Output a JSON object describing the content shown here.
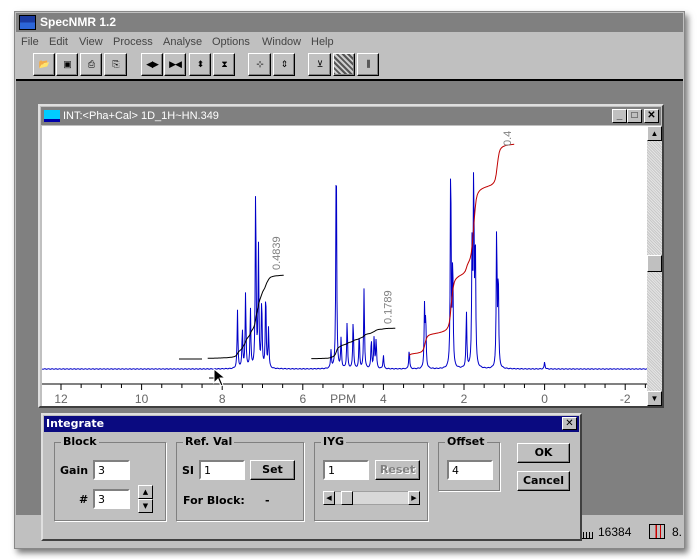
{
  "app": {
    "title": "SpecNMR 1.2"
  },
  "menu": [
    "File",
    "Edit",
    "View",
    "Process",
    "Analyse",
    "Options",
    "Window",
    "Help"
  ],
  "toolbar": [
    {
      "icon": "open-folder-icon",
      "glyph": "📂"
    },
    {
      "icon": "save-disk-icon",
      "glyph": "▣"
    },
    {
      "icon": "print-icon",
      "glyph": "⎙"
    },
    {
      "icon": "clipboard-icon",
      "glyph": "⎘"
    },
    {
      "icon": "expand-horizontal-icon",
      "glyph": "◀▶"
    },
    {
      "icon": "compress-horizontal-icon",
      "glyph": "▶◀"
    },
    {
      "icon": "expand-vertical-icon",
      "glyph": "⬍"
    },
    {
      "icon": "compress-vertical-icon",
      "glyph": "⧗"
    },
    {
      "icon": "zoom-fit-icon",
      "glyph": "⊹"
    },
    {
      "icon": "scale-icon",
      "glyph": "⇕"
    },
    {
      "icon": "baseline-icon",
      "glyph": "⊻"
    },
    {
      "icon": "integrate-icon",
      "glyph": "▨",
      "active": true
    },
    {
      "icon": "peak-pick-icon",
      "glyph": "⫼"
    }
  ],
  "child": {
    "title": "INT:<Pha+Cal> 1D_1H~HN.349"
  },
  "spectrum": {
    "x_label": "PPM",
    "x_range": [
      12.4,
      -2.5
    ],
    "ticks": [
      "12",
      "10",
      "8",
      "6",
      "4",
      "2",
      "0",
      "-2"
    ],
    "peaks": [
      [
        7.62,
        58
      ],
      [
        7.5,
        40
      ],
      [
        7.42,
        76
      ],
      [
        7.3,
        60
      ],
      [
        7.17,
        184
      ],
      [
        7.1,
        120
      ],
      [
        7.02,
        70
      ],
      [
        6.92,
        78
      ],
      [
        6.85,
        40
      ],
      [
        5.3,
        18
      ],
      [
        5.17,
        231
      ],
      [
        5.05,
        30
      ],
      [
        4.9,
        48
      ],
      [
        4.75,
        50
      ],
      [
        4.6,
        35
      ],
      [
        4.48,
        81
      ],
      [
        4.3,
        30
      ],
      [
        4.23,
        32
      ],
      [
        4.18,
        30
      ],
      [
        4.0,
        14
      ],
      [
        3.36,
        20
      ],
      [
        2.98,
        61
      ],
      [
        2.95,
        50
      ],
      [
        2.33,
        217
      ],
      [
        2.28,
        110
      ],
      [
        1.94,
        56
      ],
      [
        1.8,
        120
      ],
      [
        1.76,
        197
      ],
      [
        1.72,
        130
      ],
      [
        1.19,
        142
      ],
      [
        1.15,
        95
      ],
      [
        0.0,
        7
      ]
    ],
    "color": "#0000c8",
    "integrals": [
      {
        "label": "0.4839",
        "from": 8.36,
        "to": 6.47,
        "color": "#000000"
      },
      {
        "label": "0.1789",
        "from": 5.79,
        "to": 3.7,
        "color": "#000000"
      },
      {
        "label": "0.4",
        "from": 3.36,
        "to": 0.74,
        "color": "#c00000"
      }
    ]
  },
  "dialog": {
    "title": "Integrate",
    "block": {
      "label": "Block",
      "gain_label": "Gain",
      "gain": "3",
      "num_label": "#",
      "num": "3"
    },
    "ref": {
      "label": "Ref. Val",
      "si_label": "SI",
      "si": "1",
      "set": "Set",
      "for_block_label": "For Block:",
      "for_block": "-"
    },
    "iyg": {
      "label": "IYG",
      "value": "1",
      "reset": "Reset",
      "slider": 0.1
    },
    "offset": {
      "label": "Offset",
      "value": "4"
    },
    "ok": "OK",
    "cancel": "Cancel"
  },
  "status": {
    "points": "16384",
    "zoom": "8."
  }
}
